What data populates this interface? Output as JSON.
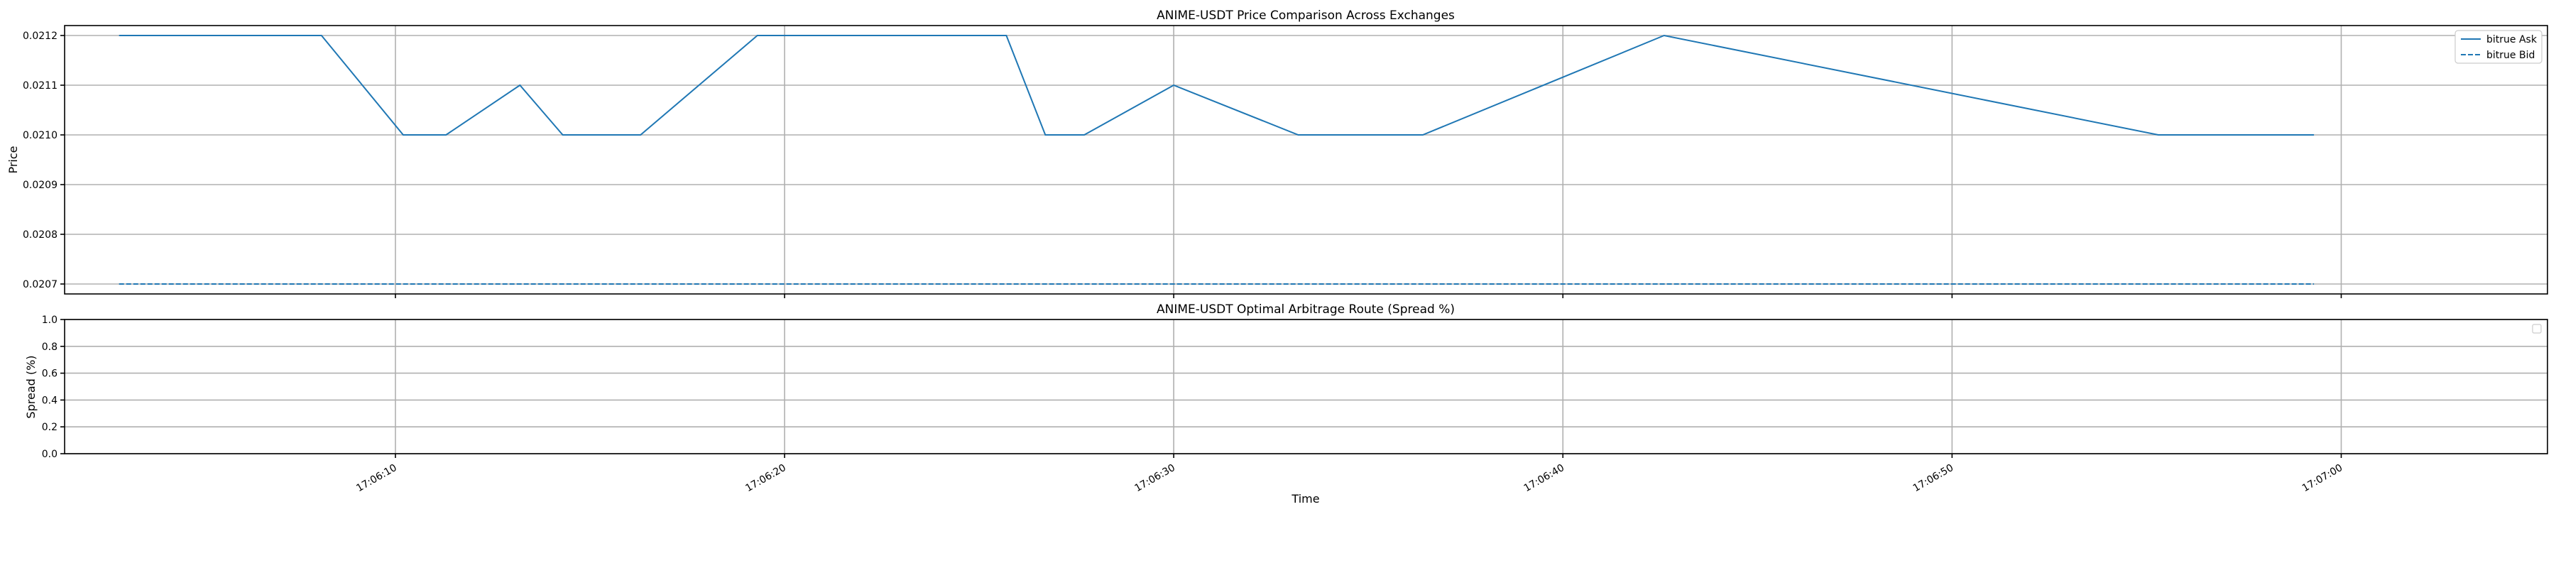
{
  "chart_data": [
    {
      "type": "line",
      "title": "ANIME-USDT Price Comparison Across Exchanges",
      "xlabel": "",
      "ylabel": "Price",
      "ylim": [
        0.02068,
        0.02122
      ],
      "yticks": [
        "0.0207",
        "0.0208",
        "0.0209",
        "0.0210",
        "0.0211",
        "0.0212"
      ],
      "yticks_values": [
        0.0207,
        0.0208,
        0.0209,
        0.021,
        0.0211,
        0.0212
      ],
      "xlim_seconds": [
        1.5,
        65.3
      ],
      "grid": true,
      "legend_position": "top-right",
      "series": [
        {
          "name": "bitrue Ask",
          "style": "solid",
          "color": "#1f77b4",
          "x_seconds": [
            2.9,
            8.1,
            10.2,
            11.3,
            13.2,
            14.3,
            16.3,
            19.3,
            25.7,
            26.7,
            27.7,
            30.0,
            33.2,
            36.4,
            42.6,
            55.3,
            59.3
          ],
          "values": [
            0.0212,
            0.0212,
            0.021,
            0.021,
            0.0211,
            0.021,
            0.021,
            0.0212,
            0.0212,
            0.021,
            0.021,
            0.0211,
            0.021,
            0.021,
            0.0212,
            0.021,
            0.021
          ]
        },
        {
          "name": "bitrue Bid",
          "style": "dashed",
          "color": "#1f77b4",
          "x_seconds": [
            2.9,
            59.3
          ],
          "values": [
            0.0207,
            0.0207
          ]
        }
      ]
    },
    {
      "type": "line",
      "title": "ANIME-USDT Optimal Arbitrage Route (Spread %)",
      "xlabel": "Time",
      "ylabel": "Spread (%)",
      "ylim": [
        0.0,
        1.0
      ],
      "yticks": [
        "0.0",
        "0.2",
        "0.4",
        "0.6",
        "0.8",
        "1.0"
      ],
      "yticks_values": [
        0.0,
        0.2,
        0.4,
        0.6,
        0.8,
        1.0
      ],
      "grid": true,
      "legend_position": "top-right",
      "series": []
    }
  ],
  "shared_x": {
    "xticks": [
      "17:06:10",
      "17:06:20",
      "17:06:30",
      "17:06:40",
      "17:06:50",
      "17:07:00"
    ],
    "xticks_seconds": [
      10,
      20,
      30,
      40,
      50,
      60
    ]
  }
}
